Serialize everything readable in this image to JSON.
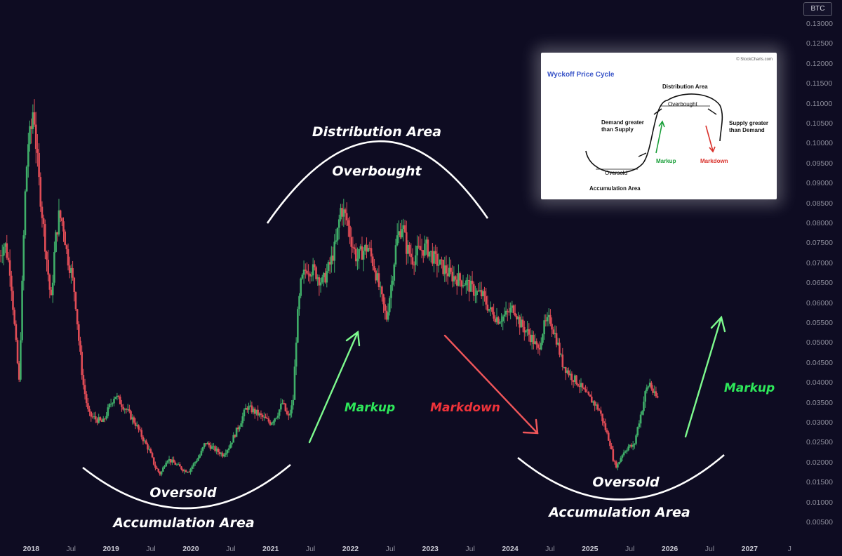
{
  "colors": {
    "background": "#0e0c22",
    "up_candle": "#3fae69",
    "down_candle": "#e04c56",
    "markup_arrow": "#7dfa8e",
    "markdown_arrow": "#f0565a",
    "annotation_white": "#ffffff",
    "inset_title": "#3a55c8",
    "inset_markup": "#1a9f3a",
    "inset_markdown": "#d9302a"
  },
  "currency_badge": "BTC",
  "annotations": {
    "distribution_area": "Distribution Area",
    "overbought": "Overbought",
    "oversold_left": "Oversold",
    "accumulation_left": "Accumulation Area",
    "oversold_right": "Oversold",
    "accumulation_right": "Accumulation Area",
    "markup_mid": "Markup",
    "markdown": "Markdown",
    "markup_right": "Markup"
  },
  "inset": {
    "title": "Wyckoff Price Cycle",
    "source": "© StockCharts.com",
    "distribution_area": "Distribution Area",
    "overbought": "Overbought",
    "demand_line1": "Demand greater",
    "demand_line2": "than Supply",
    "supply_line1": "Supply greater",
    "supply_line2": "than Demand",
    "markup": "Markup",
    "markdown": "Markdown",
    "oversold": "Oversold",
    "accumulation_area": "Accumulation Area"
  },
  "chart_data": {
    "type": "candlestick",
    "title": "",
    "xlabel": "",
    "ylabel": "",
    "ylim": [
      0.0,
      0.135
    ],
    "y_ticks": [
      "0.00500",
      "0.01000",
      "0.01500",
      "0.02000",
      "0.02500",
      "0.03000",
      "0.03500",
      "0.04000",
      "0.04500",
      "0.05000",
      "0.05500",
      "0.06000",
      "0.06500",
      "0.07000",
      "0.07500",
      "0.08000",
      "0.08500",
      "0.09000",
      "0.09500",
      "0.10000",
      "0.10500",
      "0.11000",
      "0.11500",
      "0.12000",
      "0.12500",
      "0.13000"
    ],
    "x_ticks": [
      {
        "label": "2018",
        "t": 2018.0,
        "year": true
      },
      {
        "label": "Jul",
        "t": 2018.5
      },
      {
        "label": "2019",
        "t": 2019.0,
        "year": true
      },
      {
        "label": "Jul",
        "t": 2019.5
      },
      {
        "label": "2020",
        "t": 2020.0,
        "year": true
      },
      {
        "label": "Jul",
        "t": 2020.5
      },
      {
        "label": "2021",
        "t": 2021.0,
        "year": true
      },
      {
        "label": "Jul",
        "t": 2021.5
      },
      {
        "label": "2022",
        "t": 2022.0,
        "year": true
      },
      {
        "label": "Jul",
        "t": 2022.5
      },
      {
        "label": "2023",
        "t": 2023.0,
        "year": true
      },
      {
        "label": "Jul",
        "t": 2023.5
      },
      {
        "label": "2024",
        "t": 2024.0,
        "year": true
      },
      {
        "label": "Jul",
        "t": 2024.5
      },
      {
        "label": "2025",
        "t": 2025.0,
        "year": true
      },
      {
        "label": "Jul",
        "t": 2025.5
      },
      {
        "label": "2026",
        "t": 2026.0,
        "year": true
      },
      {
        "label": "Jul",
        "t": 2026.5
      },
      {
        "label": "2027",
        "t": 2027.0,
        "year": true
      },
      {
        "label": "J",
        "t": 2027.5
      }
    ],
    "x_range": [
      2017.61,
      2027.63
    ],
    "series": [
      {
        "price_points": [
          [
            2017.6,
            0.072
          ],
          [
            2017.67,
            0.075
          ],
          [
            2017.74,
            0.068
          ],
          [
            2017.8,
            0.052
          ],
          [
            2017.85,
            0.04
          ],
          [
            2017.92,
            0.085
          ],
          [
            2017.96,
            0.1
          ],
          [
            2018.0,
            0.103
          ],
          [
            2018.03,
            0.11
          ],
          [
            2018.06,
            0.1
          ],
          [
            2018.1,
            0.09
          ],
          [
            2018.15,
            0.08
          ],
          [
            2018.2,
            0.07
          ],
          [
            2018.25,
            0.06
          ],
          [
            2018.3,
            0.075
          ],
          [
            2018.35,
            0.082
          ],
          [
            2018.4,
            0.08
          ],
          [
            2018.45,
            0.072
          ],
          [
            2018.5,
            0.068
          ],
          [
            2018.55,
            0.062
          ],
          [
            2018.6,
            0.05
          ],
          [
            2018.65,
            0.04
          ],
          [
            2018.72,
            0.032
          ],
          [
            2018.8,
            0.031
          ],
          [
            2018.9,
            0.03
          ],
          [
            2018.98,
            0.034
          ],
          [
            2019.05,
            0.037
          ],
          [
            2019.12,
            0.035
          ],
          [
            2019.2,
            0.033
          ],
          [
            2019.3,
            0.03
          ],
          [
            2019.4,
            0.026
          ],
          [
            2019.48,
            0.023
          ],
          [
            2019.55,
            0.019
          ],
          [
            2019.62,
            0.017
          ],
          [
            2019.7,
            0.021
          ],
          [
            2019.78,
            0.02
          ],
          [
            2019.85,
            0.019
          ],
          [
            2019.92,
            0.018
          ],
          [
            2019.98,
            0.018
          ],
          [
            2020.05,
            0.02
          ],
          [
            2020.12,
            0.022
          ],
          [
            2020.18,
            0.025
          ],
          [
            2020.25,
            0.024
          ],
          [
            2020.32,
            0.023
          ],
          [
            2020.4,
            0.022
          ],
          [
            2020.48,
            0.024
          ],
          [
            2020.55,
            0.027
          ],
          [
            2020.62,
            0.03
          ],
          [
            2020.7,
            0.034
          ],
          [
            2020.78,
            0.033
          ],
          [
            2020.85,
            0.032
          ],
          [
            2020.92,
            0.031
          ],
          [
            2021.0,
            0.03
          ],
          [
            2021.08,
            0.032
          ],
          [
            2021.15,
            0.035
          ],
          [
            2021.22,
            0.031
          ],
          [
            2021.28,
            0.035
          ],
          [
            2021.33,
            0.055
          ],
          [
            2021.38,
            0.065
          ],
          [
            2021.45,
            0.069
          ],
          [
            2021.55,
            0.068
          ],
          [
            2021.65,
            0.065
          ],
          [
            2021.75,
            0.07
          ],
          [
            2021.82,
            0.075
          ],
          [
            2021.88,
            0.084
          ],
          [
            2021.95,
            0.081
          ],
          [
            2022.02,
            0.075
          ],
          [
            2022.08,
            0.071
          ],
          [
            2022.15,
            0.073
          ],
          [
            2022.22,
            0.074
          ],
          [
            2022.3,
            0.069
          ],
          [
            2022.38,
            0.062
          ],
          [
            2022.45,
            0.056
          ],
          [
            2022.52,
            0.066
          ],
          [
            2022.58,
            0.076
          ],
          [
            2022.65,
            0.08
          ],
          [
            2022.7,
            0.074
          ],
          [
            2022.78,
            0.071
          ],
          [
            2022.85,
            0.073
          ],
          [
            2022.95,
            0.074
          ],
          [
            2023.05,
            0.071
          ],
          [
            2023.15,
            0.069
          ],
          [
            2023.25,
            0.067
          ],
          [
            2023.35,
            0.066
          ],
          [
            2023.45,
            0.065
          ],
          [
            2023.55,
            0.063
          ],
          [
            2023.65,
            0.062
          ],
          [
            2023.75,
            0.058
          ],
          [
            2023.85,
            0.056
          ],
          [
            2023.95,
            0.057
          ],
          [
            2024.05,
            0.059
          ],
          [
            2024.12,
            0.055
          ],
          [
            2024.2,
            0.053
          ],
          [
            2024.28,
            0.051
          ],
          [
            2024.35,
            0.048
          ],
          [
            2024.42,
            0.054
          ],
          [
            2024.5,
            0.056
          ],
          [
            2024.58,
            0.051
          ],
          [
            2024.65,
            0.045
          ],
          [
            2024.75,
            0.042
          ],
          [
            2024.85,
            0.04
          ],
          [
            2024.95,
            0.037
          ],
          [
            2025.05,
            0.035
          ],
          [
            2025.12,
            0.033
          ],
          [
            2025.2,
            0.028
          ],
          [
            2025.25,
            0.025
          ],
          [
            2025.3,
            0.02
          ],
          [
            2025.34,
            0.019
          ],
          [
            2025.4,
            0.022
          ],
          [
            2025.48,
            0.024
          ],
          [
            2025.55,
            0.024
          ],
          [
            2025.6,
            0.029
          ],
          [
            2025.66,
            0.034
          ],
          [
            2025.7,
            0.038
          ],
          [
            2025.75,
            0.04
          ],
          [
            2025.8,
            0.037
          ],
          [
            2025.85,
            0.036
          ]
        ]
      }
    ],
    "grid": false,
    "legend": "none"
  }
}
